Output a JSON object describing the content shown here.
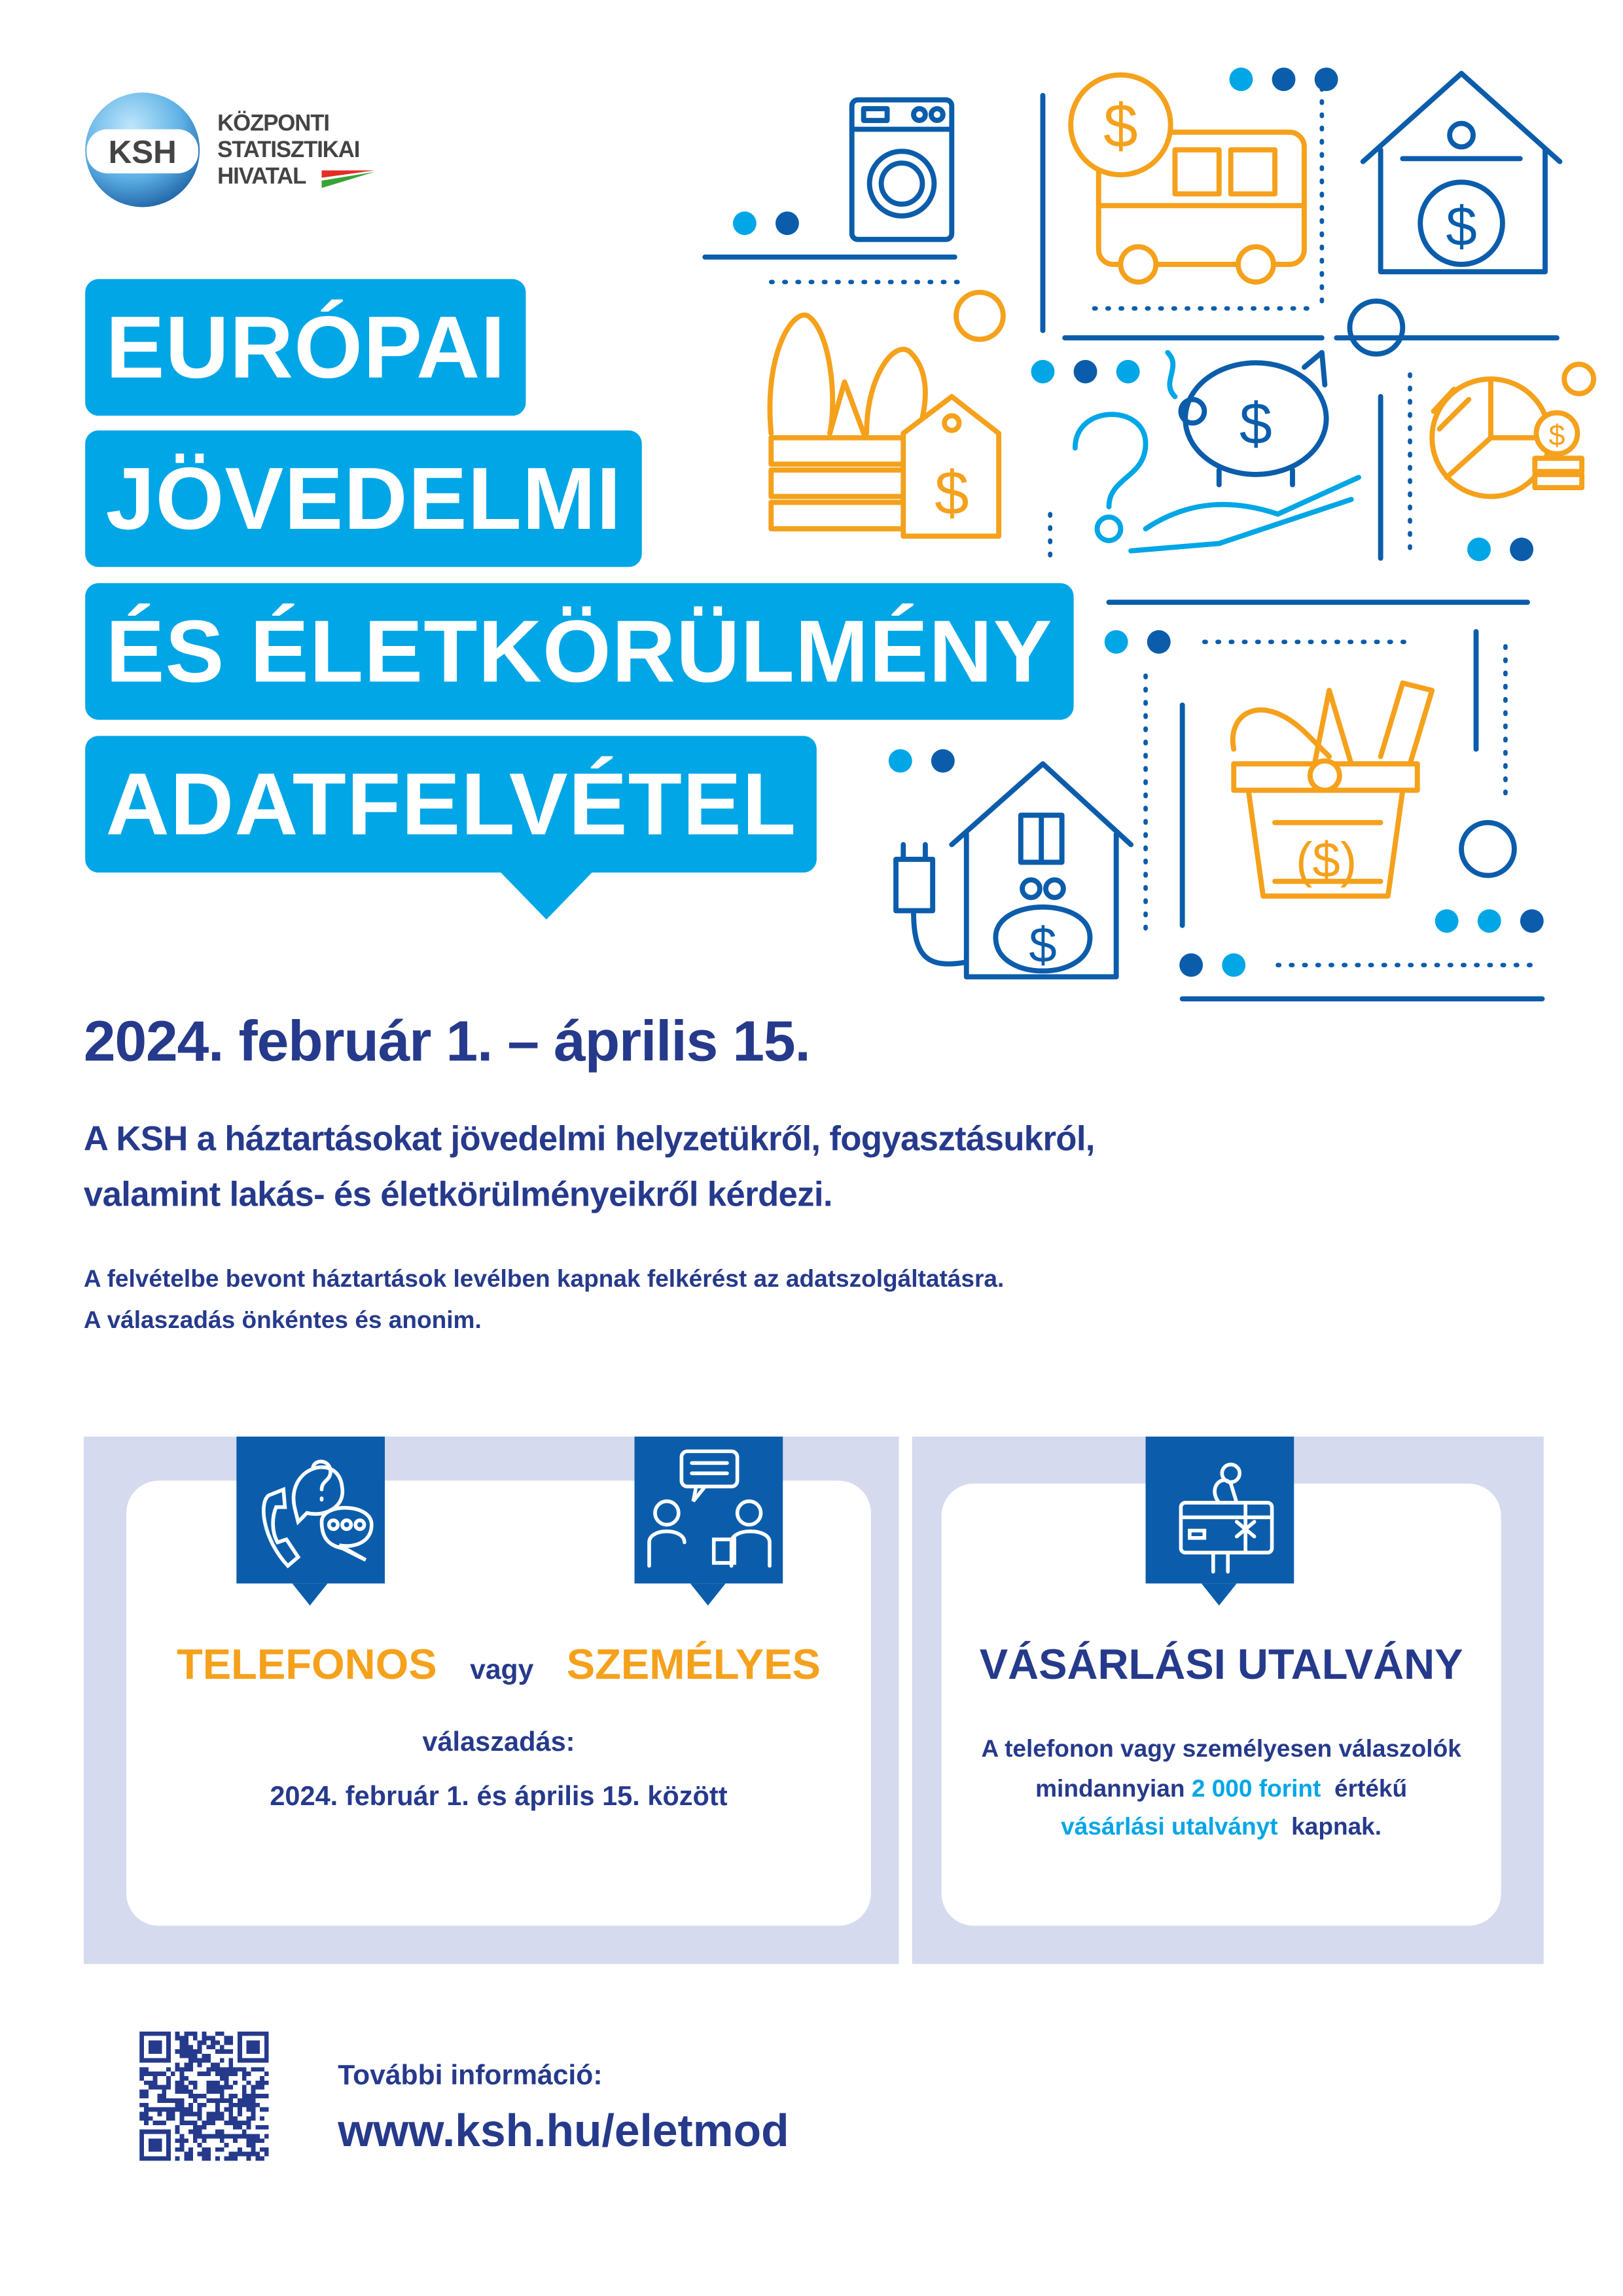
{
  "logo": {
    "abbr": "KSH",
    "lines": [
      "KÖZPONTI",
      "STATISZTIKAI",
      "HIVATAL"
    ]
  },
  "title_lines": [
    "EURÓPAI",
    "JÖVEDELMI",
    "ÉS ÉLETKÖRÜLMÉNY",
    "ADATFELVÉTEL"
  ],
  "date_heading": "2024. február 1. – április 15.",
  "lead": [
    "A KSH a háztartásokat jövedelmi helyzetükről, fogyasztásukról,",
    "valamint lakás- és életkörülményeikről kérdezi."
  ],
  "note": [
    "A felvételbe bevont háztartások levélben kapnak felkérést az adatszolgáltatásra.",
    "A válaszadás önkéntes és anonim."
  ],
  "response_panel": {
    "icons": [
      "phone-question-icon",
      "interview-people-icon"
    ],
    "mode1": "TELEFONOS",
    "or": "vagy",
    "mode2": "SZEMÉLYES",
    "label": "válaszadás:",
    "period": "2024. február 1. és április 15. között"
  },
  "voucher_panel": {
    "icon": "gift-card-icon",
    "title": "VÁSÁRLÁSI UTALVÁNY",
    "line1": "A telefonon vagy személyesen válaszolók",
    "line2_pre": "mindannyian",
    "line2_amount": "2 000 forint",
    "line2_post": "értékű",
    "line3_highlight": "vásárlási utalványt",
    "line3_post": "kapnak."
  },
  "footer": {
    "info_label": "További információ:",
    "url": "www.ksh.hu/eletmod"
  },
  "colors": {
    "navy": "#263a8c",
    "cyan": "#00a6e6",
    "orange": "#f5a11c",
    "blue": "#0b5dab",
    "lavender": "#d5daee"
  }
}
